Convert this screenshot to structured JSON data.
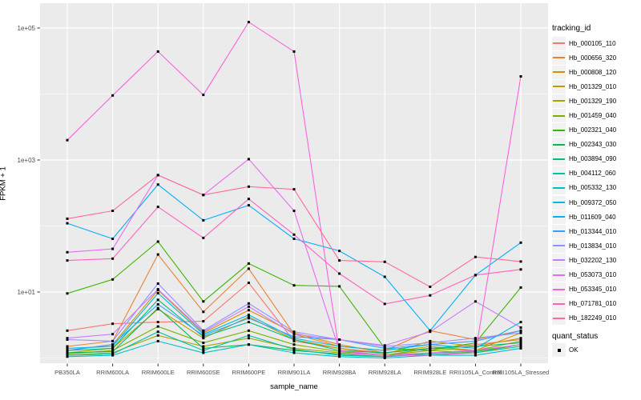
{
  "chart_data": {
    "type": "line",
    "title": "",
    "xlabel": "sample_name",
    "ylabel": "FPKM + 1",
    "y_scale": "log10",
    "ylim_log10": [
      -0.08,
      5.4
    ],
    "grid": true,
    "panel_bg": "#EBEBEB",
    "grid_color": "#FFFFFF",
    "tick_label_color": "#4D4D4D",
    "point_marker": {
      "shape": "square",
      "color": "#000000",
      "size": 3
    },
    "x_categories": [
      "PB350LA",
      "RRIM600LA",
      "RRIM600LE",
      "RRIM600SE",
      "RRIM600PE",
      "RRIM901LA",
      "RRIM928BA",
      "RRIM928LA",
      "RRIM928LE",
      "RRII105LA_Control",
      "RRII105LA_Stressed"
    ],
    "y_ticks": [
      {
        "label": "1e+01",
        "value": 10
      },
      {
        "label": "1e+03",
        "value": 1000
      },
      {
        "label": "1e+05",
        "value": 100000
      }
    ],
    "y_minor_breaks": [
      1,
      100,
      10000
    ],
    "legend": {
      "tracking_title": "tracking_id",
      "quant_title": "quant_status",
      "quant_items": [
        {
          "label": "OK",
          "marker": "black-square"
        }
      ],
      "position": "right"
    },
    "series": [
      {
        "name": "Hb_000105_110",
        "color": "#F8766D",
        "values": [
          2.6,
          3.3,
          3.5,
          3.6,
          13.8,
          1.8,
          1.4,
          1.2,
          1.4,
          1.6,
          1.9
        ]
      },
      {
        "name": "Hb_000656_320",
        "color": "#EA8331",
        "values": [
          1.5,
          1.8,
          37,
          5.0,
          22.5,
          2.3,
          1.5,
          1.3,
          2.6,
          1.9,
          2.6
        ]
      },
      {
        "name": "Hb_000808_120",
        "color": "#D89000",
        "values": [
          1.3,
          1.6,
          10.7,
          2.4,
          5.3,
          2.4,
          1.6,
          1.2,
          1.5,
          1.3,
          2.4
        ]
      },
      {
        "name": "Hb_001329_010",
        "color": "#C09B00",
        "values": [
          1.2,
          1.4,
          5.5,
          2.0,
          4.2,
          1.9,
          1.4,
          1.15,
          1.8,
          1.5,
          2.0
        ]
      },
      {
        "name": "Hb_001329_190",
        "color": "#A3A500",
        "values": [
          1.1,
          1.2,
          2.2,
          1.5,
          2.0,
          1.4,
          1.2,
          1.1,
          1.3,
          1.2,
          1.6
        ]
      },
      {
        "name": "Hb_001459_040",
        "color": "#7CAE00",
        "values": [
          1.15,
          1.3,
          3.0,
          1.7,
          2.6,
          1.6,
          1.25,
          1.1,
          1.4,
          1.3,
          1.8
        ]
      },
      {
        "name": "Hb_002321_040",
        "color": "#39B600",
        "values": [
          9.5,
          15.5,
          58,
          7.2,
          27,
          12.6,
          12.2,
          1.4,
          1.3,
          1.7,
          11.7
        ]
      },
      {
        "name": "Hb_002343_030",
        "color": "#00BB4E",
        "values": [
          1.2,
          1.25,
          5.7,
          1.4,
          1.6,
          1.3,
          1.15,
          1.05,
          1.2,
          1.25,
          1.6
        ]
      },
      {
        "name": "Hb_003894_090",
        "color": "#00BF7D",
        "values": [
          1.3,
          1.4,
          7.6,
          2.1,
          3.5,
          1.9,
          1.3,
          1.2,
          1.4,
          1.5,
          1.7
        ]
      },
      {
        "name": "Hb_004112_060",
        "color": "#00C1A3",
        "values": [
          1.1,
          1.15,
          2.5,
          1.3,
          2.2,
          1.35,
          1.1,
          1.05,
          1.15,
          1.2,
          1.5
        ]
      },
      {
        "name": "Hb_005332_130",
        "color": "#00BFC4",
        "values": [
          1.05,
          1.1,
          1.8,
          1.2,
          1.6,
          1.2,
          1.05,
          1.0,
          1.1,
          1.1,
          1.4
        ]
      },
      {
        "name": "Hb_009372_050",
        "color": "#00BAE0",
        "values": [
          1.4,
          1.5,
          9.6,
          2.3,
          4.5,
          2.0,
          1.5,
          1.3,
          1.6,
          1.4,
          3.5
        ]
      },
      {
        "name": "Hb_011609_040",
        "color": "#00B0F6",
        "values": [
          110,
          64,
          425,
          122,
          206,
          64,
          42,
          17,
          2.6,
          18,
          56
        ]
      },
      {
        "name": "Hb_013344_010",
        "color": "#35A2FF",
        "values": [
          1.3,
          1.6,
          6.5,
          2.2,
          4.0,
          2.1,
          1.9,
          1.4,
          1.6,
          1.8,
          2.6
        ]
      },
      {
        "name": "Hb_013834_010",
        "color": "#9590FF",
        "values": [
          1.9,
          1.8,
          13.4,
          2.6,
          6.7,
          2.5,
          1.9,
          1.5,
          1.7,
          2.0,
          2.4
        ]
      },
      {
        "name": "Hb_032202_130",
        "color": "#C77CFF",
        "values": [
          2.0,
          2.3,
          11,
          2.5,
          6.0,
          2.3,
          1.9,
          1.55,
          2.5,
          7.2,
          2.9
        ]
      },
      {
        "name": "Hb_053073_010",
        "color": "#E76BF3",
        "values": [
          40,
          45,
          590,
          295,
          1030,
          170,
          1.3,
          1.1,
          1.2,
          1.3,
          1.6
        ]
      },
      {
        "name": "Hb_053345_010",
        "color": "#FA62DB",
        "values": [
          2000,
          9500,
          44000,
          9700,
          123000,
          44000,
          1.2,
          1.1,
          1.1,
          1.2,
          18500
        ]
      },
      {
        "name": "Hb_071781_010",
        "color": "#FF62BC",
        "values": [
          30,
          32,
          195,
          66,
          257,
          74,
          19,
          6.6,
          8.9,
          18,
          22
        ]
      },
      {
        "name": "Hb_182249_010",
        "color": "#FF6A98",
        "values": [
          129,
          170,
          590,
          295,
          395,
          360,
          30,
          28.6,
          12,
          34,
          29
        ]
      }
    ]
  }
}
